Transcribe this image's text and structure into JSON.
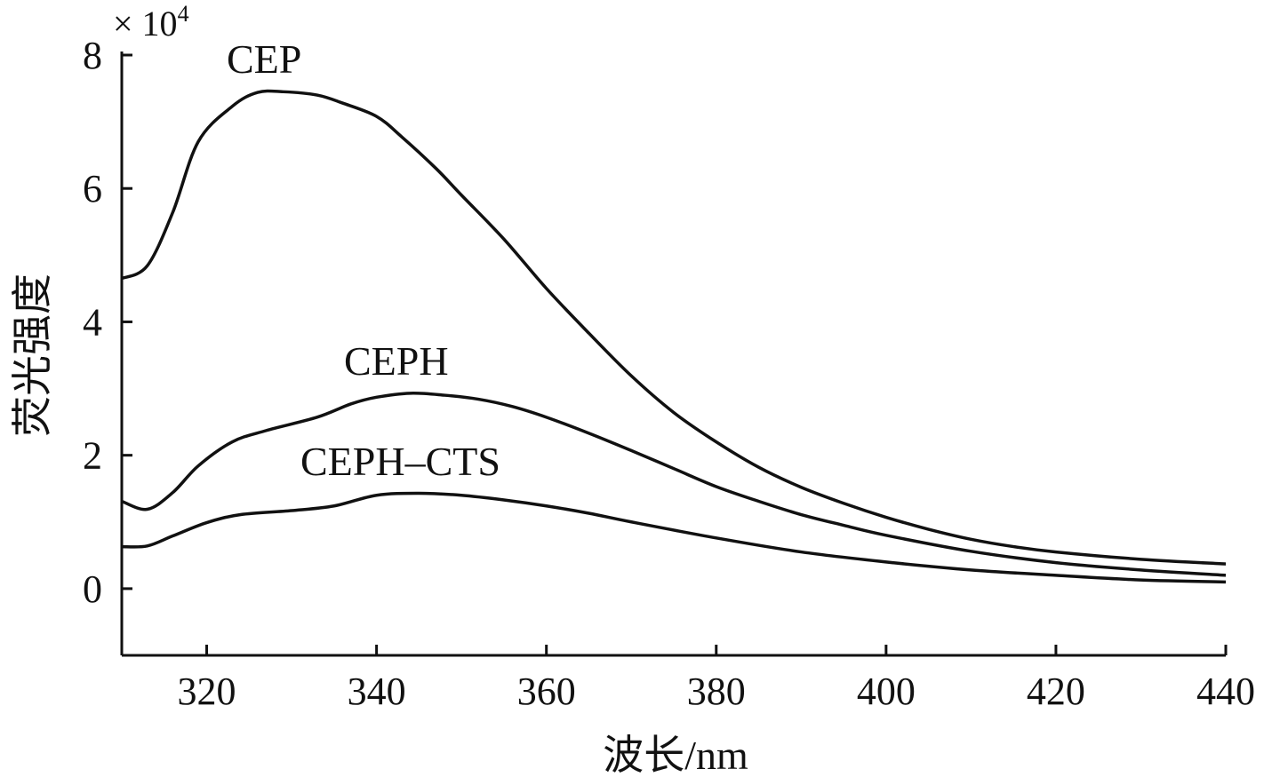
{
  "chart_data": {
    "type": "line",
    "title": "",
    "xlabel": "波长/nm",
    "ylabel": "荧光强度",
    "y_multiplier": "× 10",
    "y_multiplier_exp": "4",
    "xlim": [
      310,
      440
    ],
    "ylim": [
      -1,
      8
    ],
    "xticks": [
      320,
      340,
      360,
      380,
      400,
      420,
      440
    ],
    "yticks": [
      0,
      2,
      4,
      6,
      8
    ],
    "grid": false,
    "series": [
      {
        "name": "CEP",
        "x": [
          310,
          313,
          316,
          319,
          323,
          326,
          329,
          333,
          336,
          340,
          343,
          347,
          350,
          355,
          360,
          365,
          370,
          375,
          380,
          385,
          390,
          395,
          400,
          405,
          410,
          415,
          420,
          430,
          440
        ],
        "y": [
          4.65,
          4.84,
          5.64,
          6.7,
          7.23,
          7.44,
          7.45,
          7.4,
          7.28,
          7.08,
          6.77,
          6.3,
          5.9,
          5.24,
          4.5,
          3.83,
          3.19,
          2.64,
          2.2,
          1.82,
          1.52,
          1.28,
          1.07,
          0.89,
          0.74,
          0.63,
          0.55,
          0.44,
          0.37
        ]
      },
      {
        "name": "CEPH",
        "x": [
          310,
          313,
          316,
          319,
          323,
          327,
          333,
          337,
          340,
          344,
          348,
          352,
          356,
          360,
          365,
          370,
          375,
          380,
          385,
          390,
          395,
          400,
          410,
          420,
          430,
          440
        ],
        "y": [
          1.31,
          1.19,
          1.44,
          1.84,
          2.2,
          2.37,
          2.57,
          2.77,
          2.87,
          2.93,
          2.9,
          2.84,
          2.73,
          2.57,
          2.33,
          2.07,
          1.8,
          1.53,
          1.31,
          1.11,
          0.95,
          0.8,
          0.56,
          0.39,
          0.28,
          0.2
        ]
      },
      {
        "name": "CEPH–CTS",
        "x": [
          310,
          313,
          316,
          320,
          324,
          330,
          335,
          340,
          345,
          350,
          355,
          360,
          365,
          370,
          380,
          390,
          400,
          410,
          420,
          430,
          440
        ],
        "y": [
          0.63,
          0.64,
          0.79,
          0.99,
          1.11,
          1.17,
          1.24,
          1.4,
          1.43,
          1.4,
          1.33,
          1.24,
          1.13,
          1.0,
          0.76,
          0.55,
          0.4,
          0.28,
          0.2,
          0.13,
          0.1
        ]
      }
    ]
  }
}
